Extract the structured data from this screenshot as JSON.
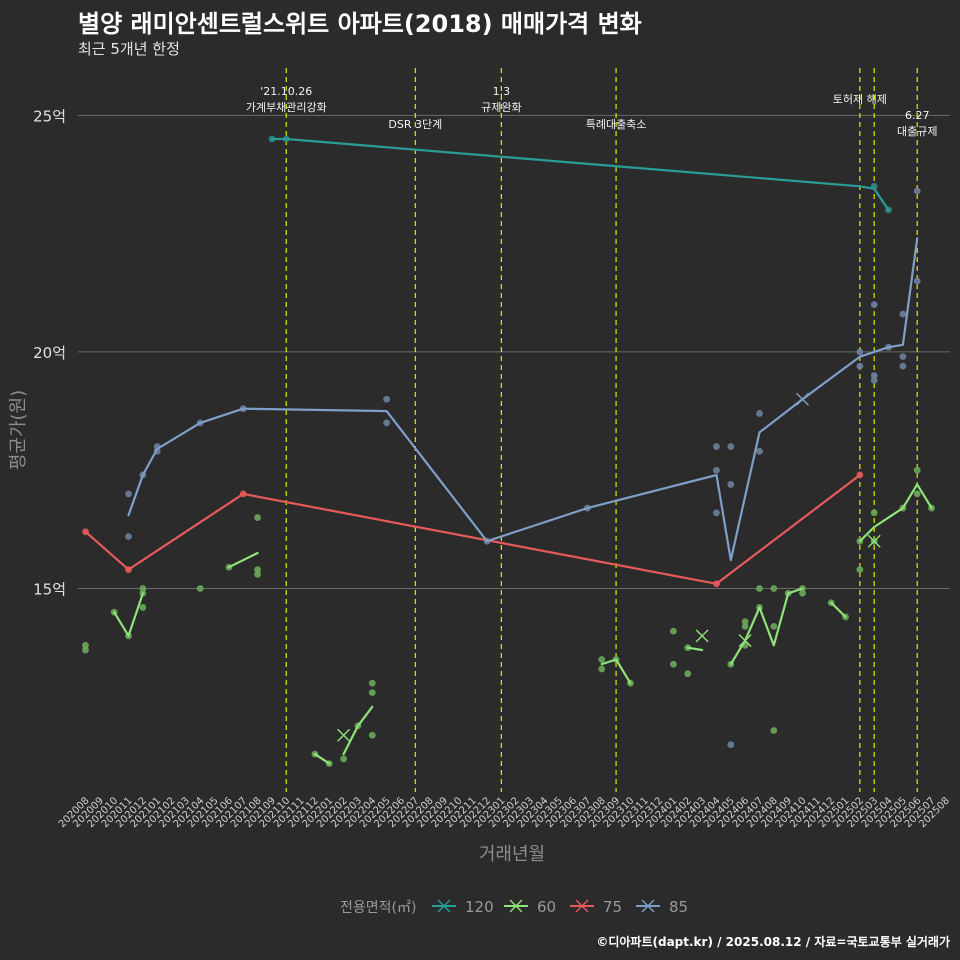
{
  "title": "별양 래미안센트럴스위트 아파트(2018) 매매가격 변화",
  "subtitle": "최근 5개년 한정",
  "footer": "©디아파트(dapt.kr) / 2025.08.12 / 자료=국토교통부 실거래가",
  "colors": {
    "background": "#2b2b2b",
    "grid": "#6a6a6a",
    "event": "#e6e600",
    "s120": "#2a9d96",
    "s60": "#8fe27a",
    "s75": "#e85a5a",
    "s85": "#7f9fc8",
    "p120": "#2a8a86",
    "p60": "#6aa85a",
    "p85": "#6d7f9c"
  },
  "chart_data": {
    "type": "line",
    "title": "별양 래미안센트럴스위트 아파트(2018) 매매가격 변화",
    "xlabel": "거래년월",
    "ylabel": "평균가(원)",
    "ylim": [
      10.7,
      26
    ],
    "yticks": [
      {
        "value": 15,
        "label": "15억"
      },
      {
        "value": 20,
        "label": "20억"
      },
      {
        "value": 25,
        "label": "25억"
      }
    ],
    "xlim": [
      "202008",
      "202508"
    ],
    "months": [
      "202008",
      "202009",
      "202010",
      "202011",
      "202012",
      "202101",
      "202102",
      "202103",
      "202104",
      "202105",
      "202106",
      "202107",
      "202108",
      "202109",
      "202110",
      "202111",
      "202112",
      "202201",
      "202202",
      "202203",
      "202204",
      "202205",
      "202206",
      "202207",
      "202208",
      "202209",
      "202210",
      "202211",
      "202212",
      "202301",
      "202302",
      "202303",
      "202304",
      "202305",
      "202306",
      "202307",
      "202308",
      "202309",
      "202310",
      "202311",
      "202312",
      "202401",
      "202402",
      "202403",
      "202404",
      "202405",
      "202406",
      "202407",
      "202408",
      "202409",
      "202410",
      "202411",
      "202412",
      "202501",
      "202502",
      "202503",
      "202504",
      "202505",
      "202506",
      "202507",
      "202508"
    ],
    "events": [
      {
        "month": "202110",
        "lines": [
          "'21.10.26",
          "가계부채관리강화"
        ],
        "pos": "top"
      },
      {
        "month": "202207",
        "lines": [
          "DSR 3단계"
        ],
        "pos": "low"
      },
      {
        "month": "202301",
        "lines": [
          "1.3",
          "규제완화"
        ],
        "pos": "top"
      },
      {
        "month": "202309",
        "lines": [
          "특례대출축소"
        ],
        "pos": "low"
      },
      {
        "month": "202502",
        "lines": [
          "토허제 해제"
        ],
        "pos": "top"
      },
      {
        "month": "202503",
        "lines": [],
        "pos": "none"
      },
      {
        "month": "202506",
        "lines": [
          "6.27",
          "대출규제"
        ],
        "pos": "mid"
      }
    ],
    "legend": {
      "title": "전용면적(㎡)",
      "entries": [
        "120",
        "60",
        "75",
        "85"
      ],
      "position": "bottom"
    },
    "series": [
      {
        "name": "120",
        "color": "#2a9d96",
        "line": [
          [
            "202109",
            24.5
          ],
          [
            "202110",
            24.5
          ],
          [
            "202502",
            23.5
          ],
          [
            "202503",
            23.45
          ],
          [
            "202504",
            23.0
          ]
        ],
        "points": [
          [
            "202109",
            24.5
          ],
          [
            "202110",
            24.5
          ],
          [
            "202503",
            23.5
          ],
          [
            "202504",
            23.0
          ]
        ],
        "x": []
      },
      {
        "name": "60",
        "color": "#8fe27a",
        "segments": [
          [
            [
              "202010",
              14.5
            ],
            [
              "202011",
              14.0
            ],
            [
              "202012",
              14.9
            ]
          ],
          [
            [
              "202106",
              15.45
            ],
            [
              "202108",
              15.75
            ]
          ],
          [
            [
              "202112",
              11.5
            ],
            [
              "202201",
              11.3
            ]
          ],
          [
            [
              "202202",
              11.5
            ],
            [
              "202203",
              12.1
            ],
            [
              "202204",
              12.5
            ]
          ],
          [
            [
              "202308",
              13.4
            ],
            [
              "202309",
              13.5
            ],
            [
              "202310",
              13.0
            ]
          ],
          [
            [
              "202402",
              13.75
            ],
            [
              "202403",
              13.7
            ]
          ],
          [
            [
              "202405",
              13.4
            ],
            [
              "202406",
              13.9
            ],
            [
              "202407",
              14.6
            ],
            [
              "202408",
              13.8
            ],
            [
              "202409",
              14.9
            ],
            [
              "202410",
              15.0
            ]
          ],
          [
            [
              "202412",
              14.7
            ],
            [
              "202501",
              14.4
            ]
          ],
          [
            [
              "202502",
              16.0
            ],
            [
              "202503",
              16.3
            ],
            [
              "202505",
              16.7
            ],
            [
              "202506",
              17.2
            ],
            [
              "202507",
              16.7
            ]
          ]
        ],
        "points": [
          [
            "202008",
            13.8
          ],
          [
            "202008",
            13.7
          ],
          [
            "202010",
            14.5
          ],
          [
            "202011",
            14.0
          ],
          [
            "202012",
            14.6
          ],
          [
            "202012",
            14.9
          ],
          [
            "202012",
            15.0
          ],
          [
            "202104",
            15.0
          ],
          [
            "202106",
            15.45
          ],
          [
            "202108",
            15.3
          ],
          [
            "202108",
            15.4
          ],
          [
            "202108",
            16.5
          ],
          [
            "202112",
            11.5
          ],
          [
            "202201",
            11.3
          ],
          [
            "202202",
            11.4
          ],
          [
            "202203",
            12.1
          ],
          [
            "202204",
            11.9
          ],
          [
            "202204",
            12.8
          ],
          [
            "202204",
            13.0
          ],
          [
            "202308",
            13.3
          ],
          [
            "202308",
            13.5
          ],
          [
            "202309",
            13.5
          ],
          [
            "202310",
            13.0
          ],
          [
            "202401",
            13.4
          ],
          [
            "202401",
            14.1
          ],
          [
            "202402",
            13.2
          ],
          [
            "202402",
            13.75
          ],
          [
            "202405",
            13.4
          ],
          [
            "202406",
            13.8
          ],
          [
            "202406",
            14.2
          ],
          [
            "202406",
            14.3
          ],
          [
            "202407",
            14.6
          ],
          [
            "202407",
            15.0
          ],
          [
            "202408",
            12.0
          ],
          [
            "202408",
            14.2
          ],
          [
            "202408",
            15.0
          ],
          [
            "202409",
            14.9
          ],
          [
            "202410",
            14.9
          ],
          [
            "202410",
            15.0
          ],
          [
            "202412",
            14.7
          ],
          [
            "202501",
            14.4
          ],
          [
            "202502",
            15.4
          ],
          [
            "202502",
            16.0
          ],
          [
            "202503",
            16.0
          ],
          [
            "202503",
            16.6
          ],
          [
            "202505",
            16.7
          ],
          [
            "202506",
            17.0
          ],
          [
            "202506",
            17.5
          ],
          [
            "202507",
            16.7
          ]
        ],
        "x": [
          [
            "202202",
            11.9
          ],
          [
            "202403",
            14.0
          ],
          [
            "202406",
            13.9
          ],
          [
            "202503",
            16.0
          ]
        ]
      },
      {
        "name": "75",
        "color": "#e85a5a",
        "line": [
          [
            "202008",
            16.2
          ],
          [
            "202011",
            15.4
          ],
          [
            "202107",
            17.0
          ],
          [
            "202404",
            15.1
          ],
          [
            "202502",
            17.4
          ]
        ],
        "points": [
          [
            "202008",
            16.2
          ],
          [
            "202011",
            15.4
          ],
          [
            "202107",
            17.0
          ],
          [
            "202404",
            15.1
          ],
          [
            "202502",
            17.4
          ]
        ],
        "x": []
      },
      {
        "name": "85",
        "color": "#7f9fc8",
        "line": [
          [
            "202011",
            16.55
          ],
          [
            "202012",
            17.4
          ],
          [
            "202101",
            17.95
          ],
          [
            "202104",
            18.5
          ],
          [
            "202107",
            18.8
          ],
          [
            "202205",
            18.75
          ],
          [
            "202212",
            16.0
          ],
          [
            "202307",
            16.7
          ],
          [
            "202404",
            17.4
          ],
          [
            "202405",
            15.6
          ],
          [
            "202407",
            18.3
          ],
          [
            "202410",
            19.0
          ],
          [
            "202502",
            19.9
          ],
          [
            "202504",
            20.1
          ],
          [
            "202505",
            20.15
          ],
          [
            "202506",
            22.4
          ]
        ],
        "points": [
          [
            "202011",
            17.0
          ],
          [
            "202011",
            16.1
          ],
          [
            "202012",
            17.4
          ],
          [
            "202101",
            18.0
          ],
          [
            "202101",
            17.9
          ],
          [
            "202104",
            18.5
          ],
          [
            "202107",
            18.8
          ],
          [
            "202205",
            19.0
          ],
          [
            "202205",
            18.5
          ],
          [
            "202212",
            16.0
          ],
          [
            "202307",
            16.7
          ],
          [
            "202404",
            18.0
          ],
          [
            "202404",
            17.5
          ],
          [
            "202404",
            16.6
          ],
          [
            "202405",
            18.0
          ],
          [
            "202405",
            17.2
          ],
          [
            "202405",
            11.7
          ],
          [
            "202407",
            18.7
          ],
          [
            "202407",
            17.9
          ],
          [
            "202502",
            19.7
          ],
          [
            "202502",
            20.0
          ],
          [
            "202503",
            21.0
          ],
          [
            "202503",
            19.4
          ],
          [
            "202503",
            19.5
          ],
          [
            "202504",
            20.1
          ],
          [
            "202505",
            20.8
          ],
          [
            "202505",
            19.9
          ],
          [
            "202505",
            19.7
          ],
          [
            "202506",
            21.5
          ],
          [
            "202506",
            23.4
          ]
        ],
        "x": [
          [
            "202410",
            19.0
          ]
        ]
      }
    ]
  }
}
